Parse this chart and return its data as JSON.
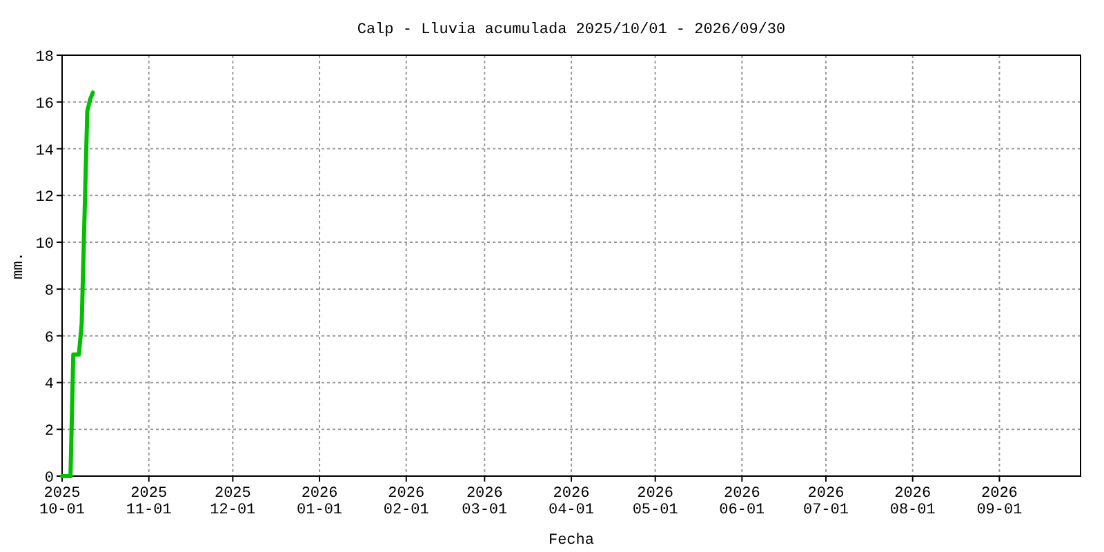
{
  "chart_data": {
    "type": "line",
    "title": "Calp - Lluvia acumulada 2025/10/01 - 2026/09/30",
    "xlabel": "Fecha",
    "ylabel": "mm.",
    "x": [
      "2025-10-01",
      "2025-10-04",
      "2025-10-05",
      "2025-10-07",
      "2025-10-08",
      "2025-10-10",
      "2025-10-11",
      "2025-10-12"
    ],
    "series": [
      {
        "color": "#00c000",
        "values": [
          0,
          0,
          5.2,
          5.2,
          6.5,
          15.6,
          16.1,
          16.4
        ]
      }
    ],
    "xlim": [
      "2025-10-01",
      "2026-09-30"
    ],
    "xticks": [
      {
        "value": "2025-10-01",
        "label": "2025\n10-01"
      },
      {
        "value": "2025-11-01",
        "label": "2025\n11-01"
      },
      {
        "value": "2025-12-01",
        "label": "2025\n12-01"
      },
      {
        "value": "2026-01-01",
        "label": "2026\n01-01"
      },
      {
        "value": "2026-02-01",
        "label": "2026\n02-01"
      },
      {
        "value": "2026-03-01",
        "label": "2026\n03-01"
      },
      {
        "value": "2026-04-01",
        "label": "2026\n04-01"
      },
      {
        "value": "2026-05-01",
        "label": "2026\n05-01"
      },
      {
        "value": "2026-06-01",
        "label": "2026\n06-01"
      },
      {
        "value": "2026-07-01",
        "label": "2026\n07-01"
      },
      {
        "value": "2026-08-01",
        "label": "2026\n08-01"
      },
      {
        "value": "2026-09-01",
        "label": "2026\n09-01"
      }
    ],
    "ylim": [
      0,
      18
    ],
    "yticks": [
      0,
      2,
      4,
      6,
      8,
      10,
      12,
      14,
      16,
      18
    ],
    "grid": true,
    "line_style": "solid",
    "marker": "none"
  }
}
